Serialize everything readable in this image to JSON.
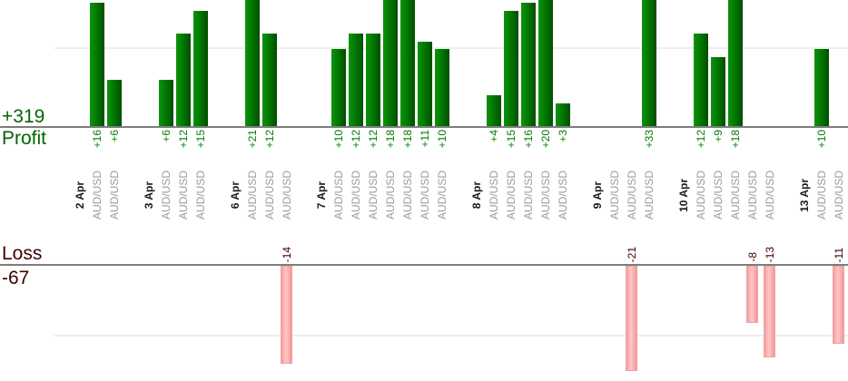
{
  "summary": {
    "profit_total_label": "+319",
    "profit_axis_label": "Profit",
    "loss_axis_label": "Loss",
    "loss_total_label": "-67"
  },
  "chart_data": {
    "type": "bar",
    "title": "",
    "instrument": "AUD/USD",
    "profit_total": 319,
    "loss_total": -67,
    "gridline_interval": 10,
    "legend": "none",
    "groups": [
      {
        "date": "2 Apr",
        "trades": [
          {
            "value": 16,
            "label": "+16",
            "instrument": "AUD/USD"
          },
          {
            "value": 6,
            "label": "+6",
            "instrument": "AUD/USD"
          }
        ]
      },
      {
        "date": "3 Apr",
        "trades": [
          {
            "value": 6,
            "label": "+6",
            "instrument": "AUD/USD"
          },
          {
            "value": 12,
            "label": "+12",
            "instrument": "AUD/USD"
          },
          {
            "value": 15,
            "label": "+15",
            "instrument": "AUD/USD"
          }
        ]
      },
      {
        "date": "6 Apr",
        "trades": [
          {
            "value": 21,
            "label": "+21",
            "instrument": "AUD/USD"
          },
          {
            "value": 12,
            "label": "+12",
            "instrument": "AUD/USD"
          },
          {
            "value": -14,
            "label": "-14",
            "instrument": "AUD/USD"
          }
        ]
      },
      {
        "date": "7 Apr",
        "trades": [
          {
            "value": 10,
            "label": "+10",
            "instrument": "AUD/USD"
          },
          {
            "value": 12,
            "label": "+12",
            "instrument": "AUD/USD"
          },
          {
            "value": 12,
            "label": "+12",
            "instrument": "AUD/USD"
          },
          {
            "value": 18,
            "label": "+18",
            "instrument": "AUD/USD"
          },
          {
            "value": 18,
            "label": "+18",
            "instrument": "AUD/USD"
          },
          {
            "value": 11,
            "label": "+11",
            "instrument": "AUD/USD"
          },
          {
            "value": 10,
            "label": "+10",
            "instrument": "AUD/USD"
          }
        ]
      },
      {
        "date": "8 Apr",
        "trades": [
          {
            "value": 4,
            "label": "+4",
            "instrument": "AUD/USD"
          },
          {
            "value": 15,
            "label": "+15",
            "instrument": "AUD/USD"
          },
          {
            "value": 16,
            "label": "+16",
            "instrument": "AUD/USD"
          },
          {
            "value": 20,
            "label": "+20",
            "instrument": "AUD/USD"
          },
          {
            "value": 3,
            "label": "+3",
            "instrument": "AUD/USD"
          }
        ]
      },
      {
        "date": "9 Apr",
        "trades": [
          {
            "value": 0,
            "label": "",
            "instrument": "AUD/USD"
          },
          {
            "value": -21,
            "label": "-21",
            "instrument": "AUD/USD"
          },
          {
            "value": 33,
            "label": "+33",
            "instrument": "AUD/USD"
          }
        ]
      },
      {
        "date": "10 Apr",
        "trades": [
          {
            "value": 12,
            "label": "+12",
            "instrument": "AUD/USD"
          },
          {
            "value": 9,
            "label": "+9",
            "instrument": "AUD/USD"
          },
          {
            "value": 18,
            "label": "+18",
            "instrument": "AUD/USD"
          },
          {
            "value": -8,
            "label": "-8",
            "instrument": "AUD/USD"
          },
          {
            "value": -13,
            "label": "-13",
            "instrument": "AUD/USD"
          }
        ]
      },
      {
        "date": "13 Apr",
        "trades": [
          {
            "value": 10,
            "label": "+10",
            "instrument": "AUD/USD"
          },
          {
            "value": -11,
            "label": "-11",
            "instrument": "AUD/USD"
          }
        ]
      }
    ],
    "colors": {
      "profit_bar": "#017a01",
      "profit_value_text": "#007d00",
      "profit_axis_text": "#006600",
      "loss_bar": "#ffc7c7",
      "loss_text": "#400000",
      "instrument_text": "#9b9b9b",
      "date_text": "#1a1a1a",
      "baseline": "#7d7d7d",
      "gridline": "#eeeeee"
    }
  }
}
